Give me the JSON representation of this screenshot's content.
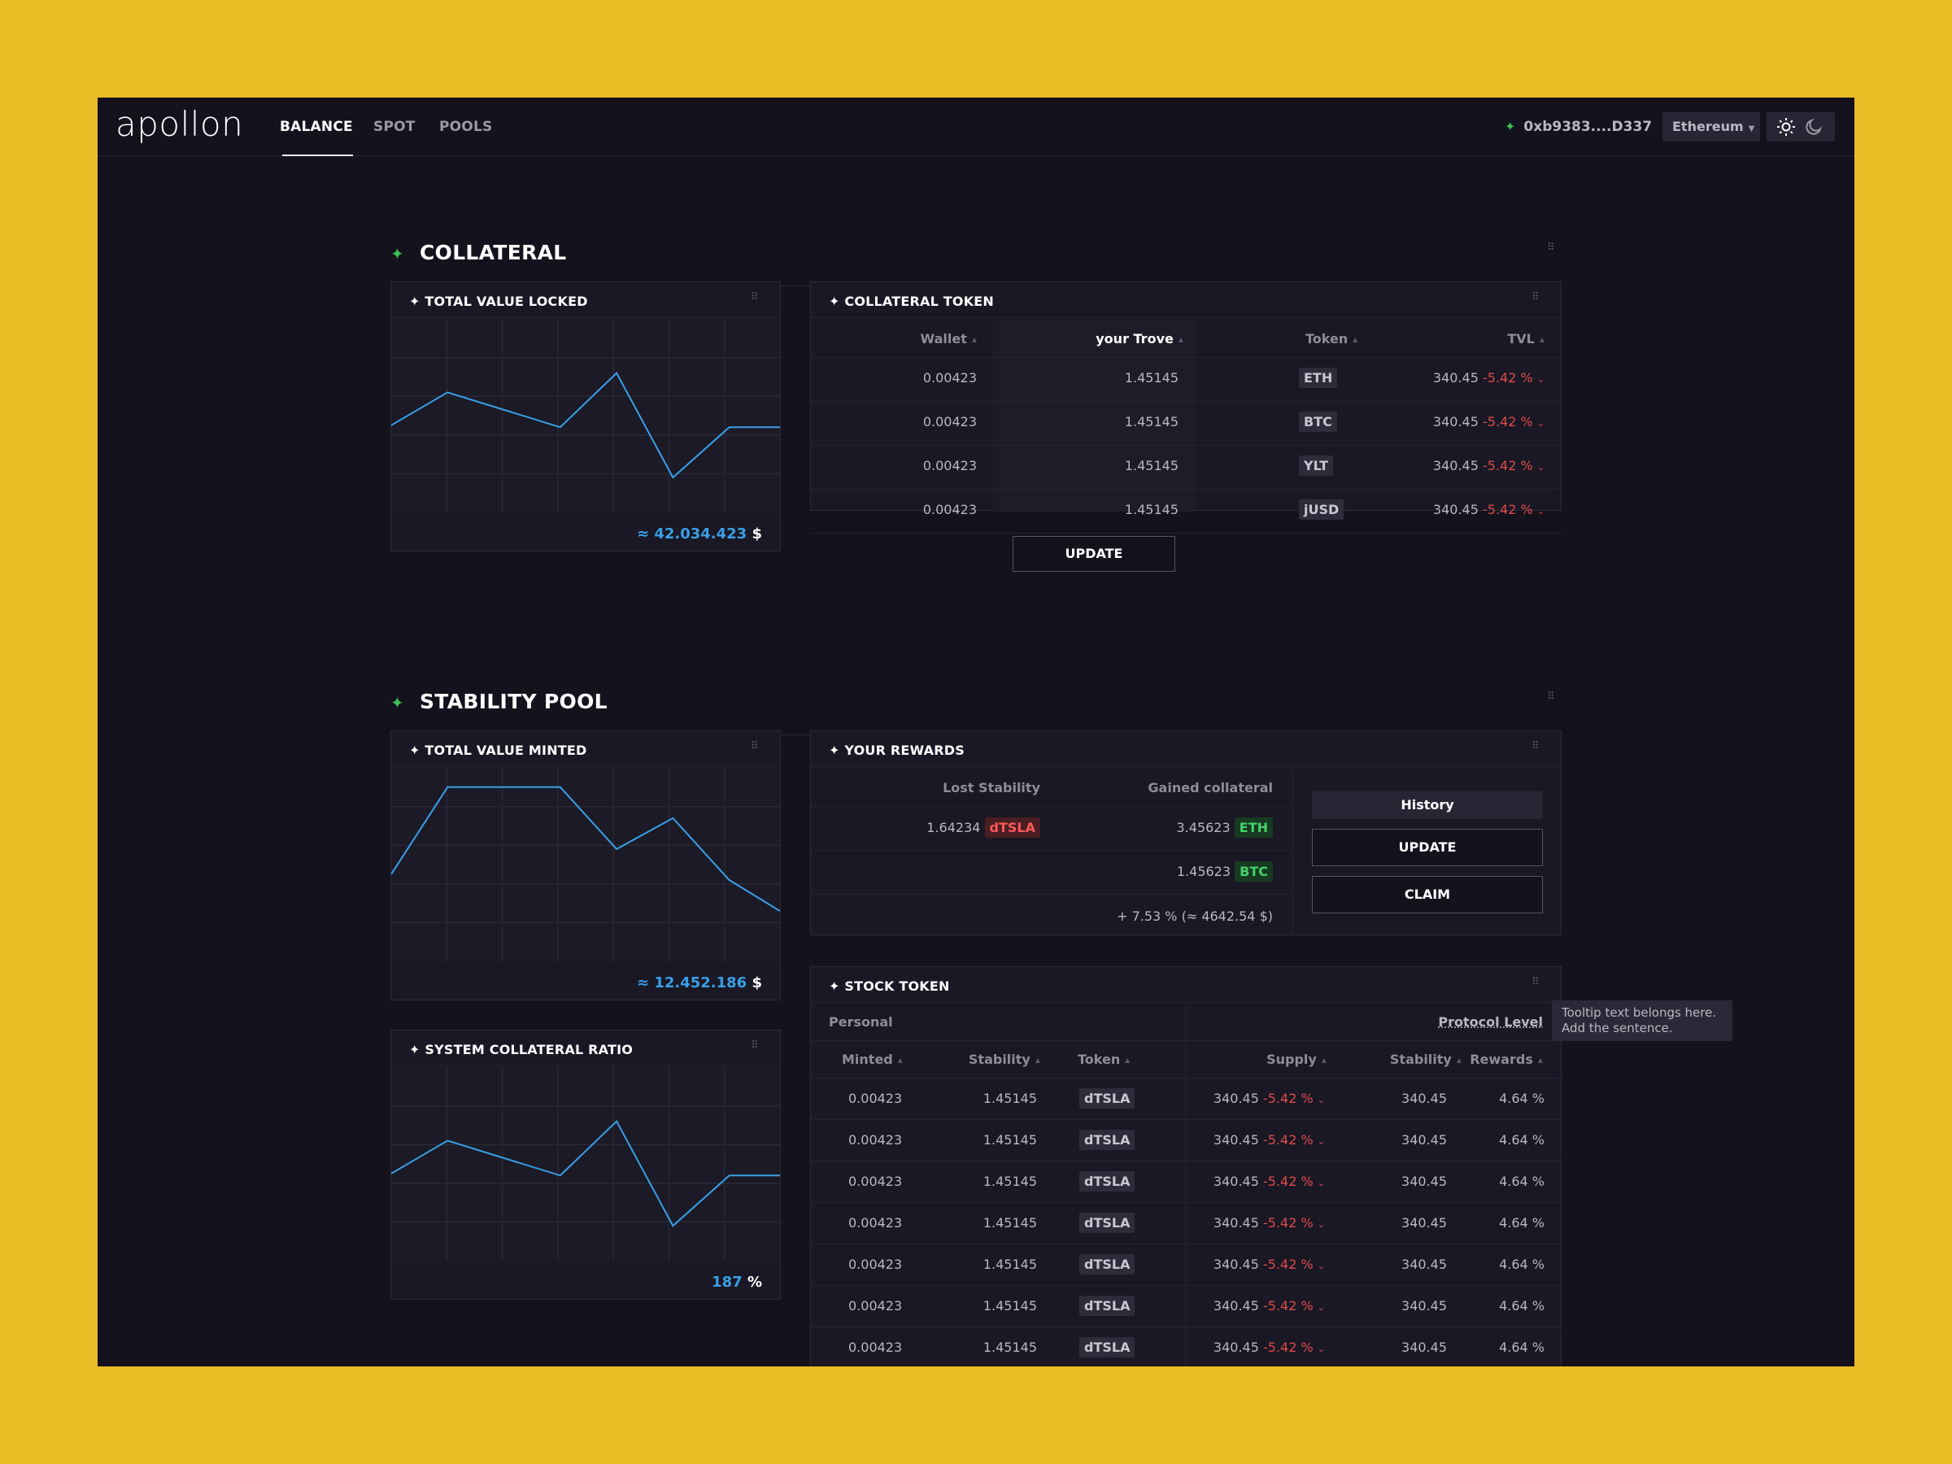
{
  "nav": {
    "logo": "apollon",
    "tabs": [
      {
        "label": "BALANCE",
        "active": true
      },
      {
        "label": "SPOT",
        "active": false
      },
      {
        "label": "POOLS",
        "active": false
      }
    ],
    "wallet_address": "0xb9383....D337",
    "network": "Ethereum",
    "theme_icons": [
      "sun-icon",
      "moon-icon"
    ]
  },
  "collateral_section": {
    "title": "COLLATERAL",
    "tvl_card": {
      "title": "TOTAL VALUE LOCKED",
      "value_prefix": "≈ ",
      "value": "42.034.423",
      "unit": "$"
    },
    "token_card": {
      "title": "COLLATERAL TOKEN",
      "headers": [
        "Wallet",
        "your Trove",
        "Token",
        "TVL"
      ],
      "rows": [
        {
          "wallet": "0.00423",
          "trove": "1.45145",
          "token": "ETH",
          "tvl": "340.45",
          "change": "-5.42 %"
        },
        {
          "wallet": "0.00423",
          "trove": "1.45145",
          "token": "BTC",
          "tvl": "340.45",
          "change": "-5.42 %"
        },
        {
          "wallet": "0.00423",
          "trove": "1.45145",
          "token": "YLT",
          "tvl": "340.45",
          "change": "-5.42 %"
        },
        {
          "wallet": "0.00423",
          "trove": "1.45145",
          "token": "jUSD",
          "tvl": "340.45",
          "change": "-5.42 %"
        }
      ],
      "update_label": "UPDATE"
    }
  },
  "stability_section": {
    "title": "STABILITY POOL",
    "tvm_card": {
      "title": "TOTAL VALUE MINTED",
      "value_prefix": "≈ ",
      "value": "12.452.186",
      "unit": "$"
    },
    "scr_card": {
      "title": "SYSTEM COLLATERAL RATIO",
      "value": "187",
      "unit": "%"
    },
    "rewards_card": {
      "title": "YOUR REWARDS",
      "headers": [
        "Lost Stability",
        "Gained collateral"
      ],
      "lost_value": "1.64234",
      "lost_token": "dTSLA",
      "gained": [
        {
          "value": "3.45623",
          "token": "ETH"
        },
        {
          "value": "1.45623",
          "token": "BTC"
        }
      ],
      "summary": "+ 7.53 % (≈ 4642.54 $)",
      "history_label": "History",
      "update_label": "UPDATE",
      "claim_label": "CLAIM"
    },
    "stock_card": {
      "title": "STOCK TOKEN",
      "personal_label": "Personal",
      "protocol_label": "Protocol Level",
      "headers": [
        "Minted",
        "Stability",
        "Token",
        "Supply",
        "Stability",
        "Rewards"
      ],
      "rows": [
        {
          "minted": "0.00423",
          "stability": "1.45145",
          "token": "dTSLA",
          "supply": "340.45",
          "change": "-5.42 %",
          "pstability": "340.45",
          "rewards": "4.64 %"
        },
        {
          "minted": "0.00423",
          "stability": "1.45145",
          "token": "dTSLA",
          "supply": "340.45",
          "change": "-5.42 %",
          "pstability": "340.45",
          "rewards": "4.64 %"
        },
        {
          "minted": "0.00423",
          "stability": "1.45145",
          "token": "dTSLA",
          "supply": "340.45",
          "change": "-5.42 %",
          "pstability": "340.45",
          "rewards": "4.64 %"
        },
        {
          "minted": "0.00423",
          "stability": "1.45145",
          "token": "dTSLA",
          "supply": "340.45",
          "change": "-5.42 %",
          "pstability": "340.45",
          "rewards": "4.64 %"
        },
        {
          "minted": "0.00423",
          "stability": "1.45145",
          "token": "dTSLA",
          "supply": "340.45",
          "change": "-5.42 %",
          "pstability": "340.45",
          "rewards": "4.64 %"
        },
        {
          "minted": "0.00423",
          "stability": "1.45145",
          "token": "dTSLA",
          "supply": "340.45",
          "change": "-5.42 %",
          "pstability": "340.45",
          "rewards": "4.64 %"
        },
        {
          "minted": "0.00423",
          "stability": "1.45145",
          "token": "dTSLA",
          "supply": "340.45",
          "change": "-5.42 %",
          "pstability": "340.45",
          "rewards": "4.64 %"
        }
      ]
    },
    "tooltip": "Tooltip text belongs here. Add the sentence."
  },
  "colors": {
    "accent_line": "#3a9fe6",
    "positive": "#3fbf55",
    "negative": "#e14b4b",
    "background": "#13121d",
    "frame": "#e9bc26"
  },
  "chart_data": [
    {
      "type": "line",
      "title": "TOTAL VALUE LOCKED",
      "values": [
        0.45,
        0.62,
        0.53,
        0.44,
        0.72,
        0.18,
        0.44,
        0.44
      ],
      "ylim": [
        0,
        1
      ],
      "grid": true
    },
    {
      "type": "line",
      "title": "TOTAL VALUE MINTED",
      "values": [
        0.45,
        0.9,
        0.9,
        0.9,
        0.58,
        0.74,
        0.42,
        0.26
      ],
      "ylim": [
        0,
        1
      ],
      "grid": true
    },
    {
      "type": "line",
      "title": "SYSTEM COLLATERAL RATIO",
      "values": [
        0.45,
        0.62,
        0.53,
        0.44,
        0.72,
        0.18,
        0.44,
        0.44
      ],
      "ylim": [
        0,
        1
      ],
      "grid": true
    }
  ]
}
